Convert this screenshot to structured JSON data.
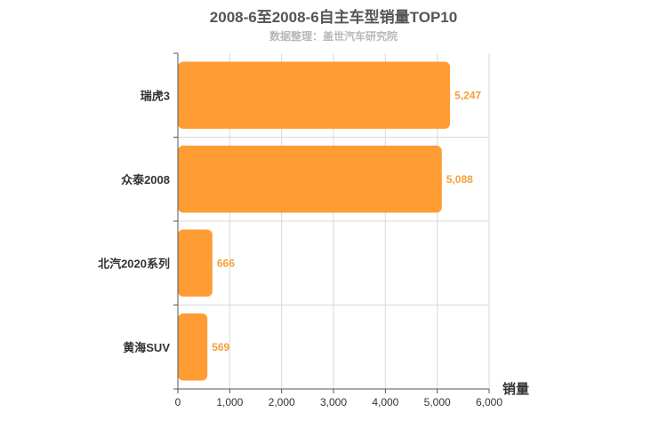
{
  "title": "2008-6至2008-6自主车型销量TOP10",
  "subtitle": "数据整理：盖世汽车研究院",
  "colors": {
    "bar": "#ff9c33",
    "label": "#f2a13a",
    "grid": "#d9d9d9",
    "axis": "#555555"
  },
  "chart_data": {
    "type": "bar",
    "orientation": "horizontal",
    "categories": [
      "瑞虎3",
      "众泰2008",
      "北汽2020系列",
      "黄海SUV"
    ],
    "values": [
      5247,
      5088,
      666,
      569
    ],
    "value_labels": [
      "5,247",
      "5,088",
      "666",
      "569"
    ],
    "xlabel": "销量",
    "ylabel": "",
    "xlim": [
      0,
      6000
    ],
    "x_ticks": [
      0,
      1000,
      2000,
      3000,
      4000,
      5000,
      6000
    ],
    "x_tick_labels": [
      "0",
      "1,000",
      "2,000",
      "3,000",
      "4,000",
      "5,000",
      "6,000"
    ],
    "grid": true
  }
}
